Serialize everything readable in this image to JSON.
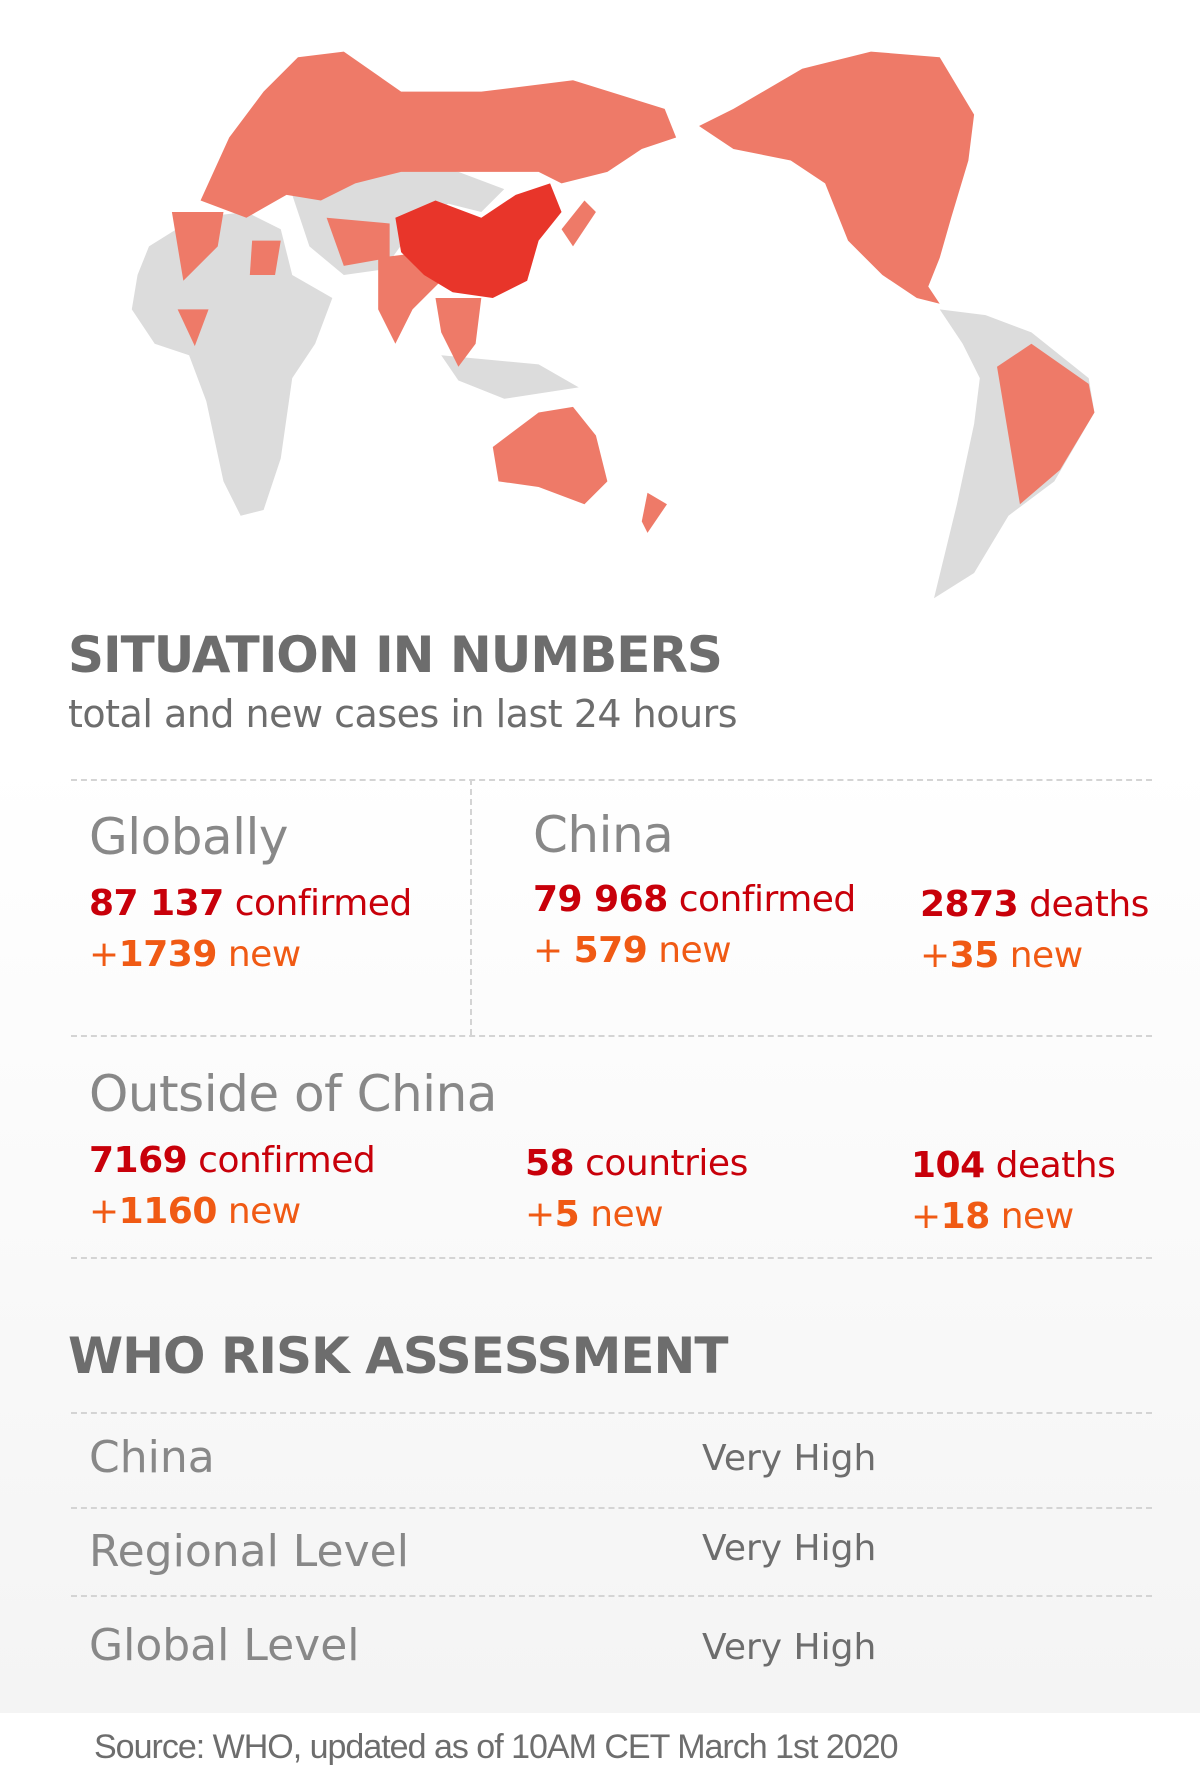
{
  "map": {
    "colors": {
      "affected": "#ee7a68",
      "china": "#e8352a",
      "unaffected": "#dcdcdc"
    }
  },
  "situation": {
    "title": "SITUATION IN NUMBERS",
    "subtitle": "total and new cases in last 24 hours",
    "globally": {
      "label": "Globally",
      "confirmed": "87 137",
      "confirmed_label": "confirmed",
      "new_prefix": "+",
      "new": "1739",
      "new_label": "new"
    },
    "china": {
      "label": "China",
      "confirmed": "79 968",
      "confirmed_label": "confirmed",
      "new_prefix": "+ ",
      "new": "579",
      "new_label": "new",
      "deaths": "2873",
      "deaths_label": "deaths",
      "deaths_new_prefix": "+",
      "deaths_new": "35",
      "deaths_new_label": "new"
    },
    "outside": {
      "label": "Outside of China",
      "confirmed": "7169",
      "confirmed_label": "confirmed",
      "new_prefix": "+",
      "new": "1160",
      "new_label": "new",
      "countries": "58",
      "countries_label": "countries",
      "countries_new_prefix": "+",
      "countries_new": "5",
      "countries_new_label": "new",
      "deaths": "104",
      "deaths_label": "deaths",
      "deaths_new_prefix": "+",
      "deaths_new": "18",
      "deaths_new_label": "new"
    }
  },
  "risk": {
    "title": "WHO RISK ASSESSMENT",
    "rows": [
      {
        "label": "China",
        "value": "Very High"
      },
      {
        "label": "Regional Level",
        "value": "Very High"
      },
      {
        "label": "Global Level",
        "value": "Very High"
      }
    ]
  },
  "source": "Source: WHO, updated as of 10AM CET March 1st 2020",
  "colors": {
    "confirmed": "#c8000a",
    "new": "#f05a14",
    "heading": "#6d6d6d",
    "label": "#888888"
  }
}
